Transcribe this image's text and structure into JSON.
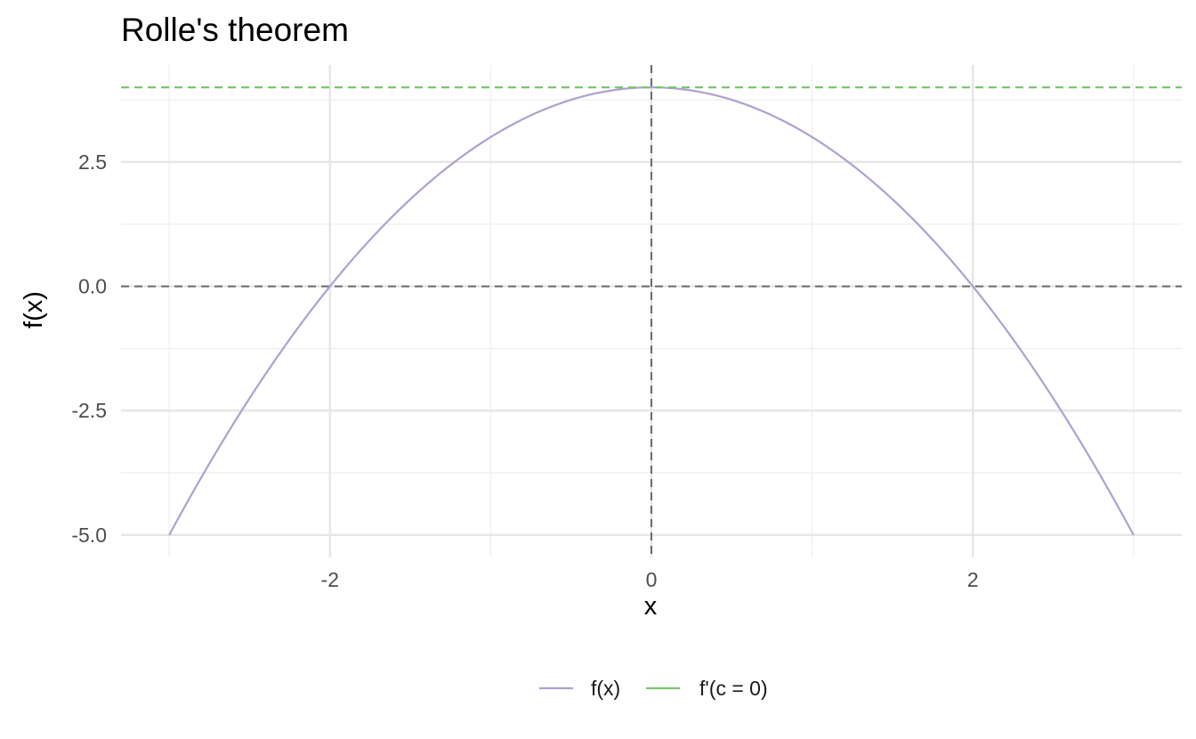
{
  "chart_data": {
    "type": "line",
    "title": "Rolle's theorem",
    "xlabel": "x",
    "ylabel": "f(x)",
    "xlim": [
      -3.3,
      3.3
    ],
    "ylim": [
      -5.45,
      4.45
    ],
    "x_ticks": [
      -2,
      0,
      2
    ],
    "x_tick_labels": [
      "-2",
      "0",
      "2"
    ],
    "y_ticks": [
      -5.0,
      -2.5,
      0.0,
      2.5
    ],
    "y_tick_labels": [
      "-5.0",
      "-2.5",
      "0.0",
      "2.5"
    ],
    "grid": true,
    "legend_position": "bottom",
    "series": [
      {
        "name": "f(x)",
        "color": "#b09fd0",
        "style": "solid",
        "x": [
          -3.0,
          -2.75,
          -2.5,
          -2.25,
          -2.0,
          -1.75,
          -1.5,
          -1.25,
          -1.0,
          -0.75,
          -0.5,
          -0.25,
          0.0,
          0.25,
          0.5,
          0.75,
          1.0,
          1.25,
          1.5,
          1.75,
          2.0,
          2.25,
          2.5,
          2.75,
          3.0
        ],
        "y": [
          -5.0,
          -3.5625,
          -2.25,
          -1.0625,
          0.0,
          0.9375,
          1.75,
          2.4375,
          3.0,
          3.4375,
          3.75,
          3.9375,
          4.0,
          3.9375,
          3.75,
          3.4375,
          3.0,
          2.4375,
          1.75,
          0.9375,
          0.0,
          -1.0625,
          -2.25,
          -3.5625,
          -5.0
        ]
      },
      {
        "name": "f'(c = 0)",
        "color": "#7ac66f",
        "style": "dashed",
        "x": [
          -3.3,
          3.3
        ],
        "y": [
          4.0,
          4.0
        ]
      }
    ],
    "reference_lines": [
      {
        "orientation": "horizontal",
        "value": 0,
        "color": "#6b6b6b",
        "style": "dashed"
      },
      {
        "orientation": "vertical",
        "value": 0,
        "color": "#6b6b6b",
        "style": "dashed"
      }
    ]
  }
}
